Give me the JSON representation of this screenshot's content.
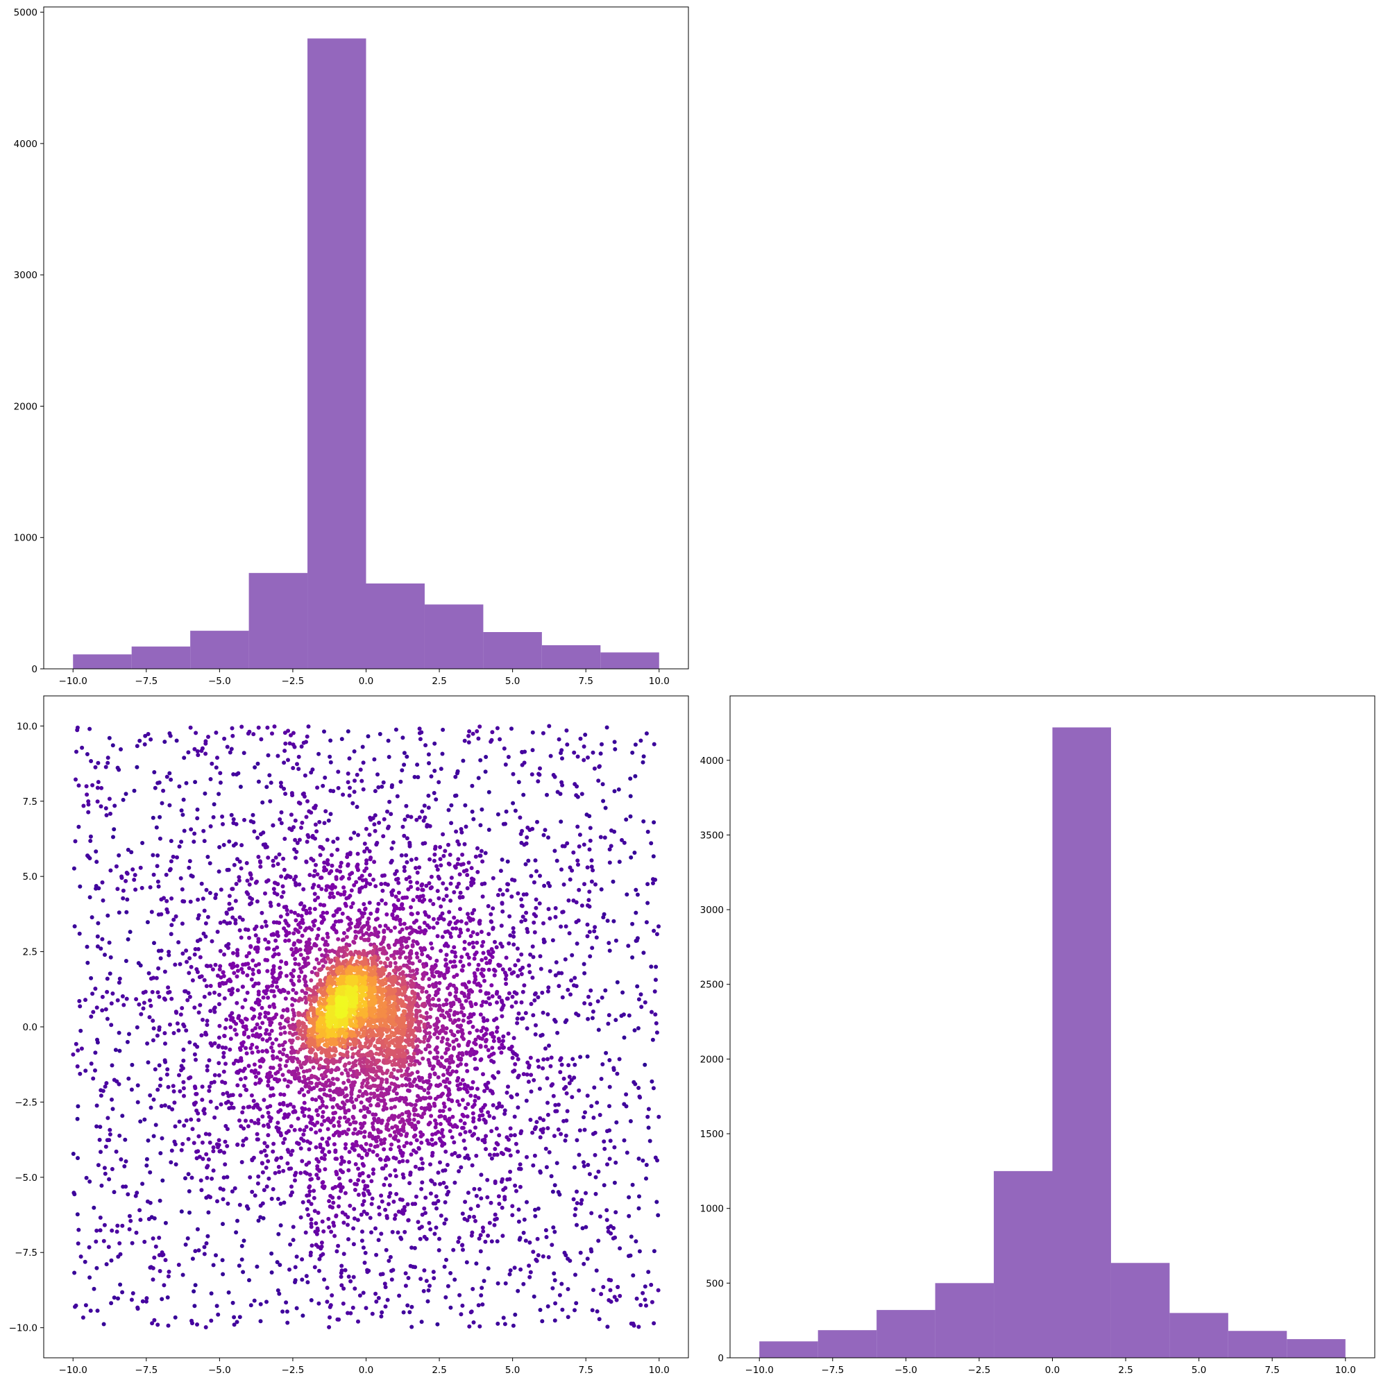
{
  "chart_data": [
    {
      "id": "hist-x",
      "type": "bar",
      "title": "",
      "xlabel": "",
      "ylabel": "",
      "bin_edges": [
        -10,
        -8,
        -6,
        -4,
        -2,
        0,
        2,
        4,
        6,
        8,
        10
      ],
      "values": [
        110,
        170,
        290,
        730,
        4800,
        650,
        490,
        280,
        180,
        125
      ],
      "xlim": [
        -11,
        11
      ],
      "ylim": [
        0,
        5040
      ],
      "xticks": [
        -10,
        -7.5,
        -5,
        -2.5,
        0,
        2.5,
        5,
        7.5,
        10
      ],
      "xtick_labels": [
        "−10.0",
        "−7.5",
        "−5.0",
        "−2.5",
        "0.0",
        "2.5",
        "5.0",
        "7.5",
        "10.0"
      ],
      "yticks": [
        0,
        1000,
        2000,
        3000,
        4000,
        5000
      ],
      "ytick_labels": [
        "0",
        "1000",
        "2000",
        "3000",
        "4000",
        "5000"
      ],
      "color": "#9467bd",
      "grid": false
    },
    {
      "id": "scatter-xy",
      "type": "scatter",
      "title": "",
      "xlabel": "",
      "ylabel": "",
      "colormap": "plasma",
      "color_encoding": "point density",
      "point_count": 7000,
      "xlim": [
        -11,
        11
      ],
      "ylim": [
        -11,
        11
      ],
      "xticks": [
        -10,
        -7.5,
        -5,
        -2.5,
        0,
        2.5,
        5,
        7.5,
        10
      ],
      "xtick_labels": [
        "−10.0",
        "−7.5",
        "−5.0",
        "−2.5",
        "0.0",
        "2.5",
        "5.0",
        "7.5",
        "10.0"
      ],
      "yticks": [
        -10,
        -7.5,
        -5,
        -2.5,
        0,
        2.5,
        5,
        7.5,
        10
      ],
      "ytick_labels": [
        "−10.0",
        "−7.5",
        "−5.0",
        "−2.5",
        "0.0",
        "2.5",
        "5.0",
        "7.5",
        "10.0"
      ],
      "components": [
        {
          "shape": "uniform",
          "weight": 0.29,
          "x_range": [
            -10,
            10
          ],
          "y_range": [
            -10,
            10
          ]
        },
        {
          "shape": "gaussian",
          "weight": 0.47,
          "mean": [
            0,
            0
          ],
          "sd": [
            3.0,
            3.3
          ]
        },
        {
          "shape": "gaussian",
          "weight": 0.09,
          "mean": [
            0.6,
            0.3
          ],
          "sd": [
            0.7,
            0.9
          ]
        },
        {
          "shape": "line",
          "weight": 0.15,
          "from": [
            -1.5,
            -0.5
          ],
          "to": [
            -0.3,
            2.0
          ],
          "spread": 0.45
        }
      ],
      "grid": false
    },
    {
      "id": "hist-y",
      "type": "bar",
      "title": "",
      "xlabel": "",
      "ylabel": "",
      "bin_edges": [
        -10,
        -8,
        -6,
        -4,
        -2,
        0,
        2,
        4,
        6,
        8,
        10
      ],
      "values": [
        110,
        185,
        320,
        500,
        1250,
        4220,
        635,
        300,
        180,
        125
      ],
      "xlim": [
        -11,
        11
      ],
      "ylim": [
        0,
        4431
      ],
      "xticks": [
        -10,
        -7.5,
        -5,
        -2.5,
        0,
        2.5,
        5,
        7.5,
        10
      ],
      "xtick_labels": [
        "−10.0",
        "−7.5",
        "−5.0",
        "−2.5",
        "0.0",
        "2.5",
        "5.0",
        "7.5",
        "10.0"
      ],
      "yticks": [
        0,
        500,
        1000,
        1500,
        2000,
        2500,
        3000,
        3500,
        4000
      ],
      "ytick_labels": [
        "0",
        "500",
        "1000",
        "1500",
        "2000",
        "2500",
        "3000",
        "3500",
        "4000"
      ],
      "color": "#9467bd",
      "grid": false
    }
  ]
}
